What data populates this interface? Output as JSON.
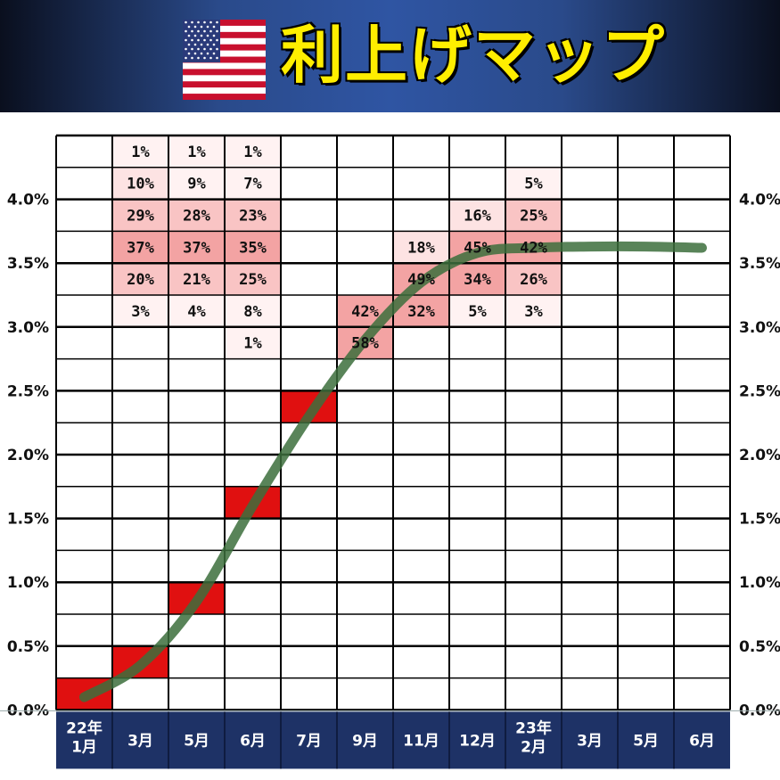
{
  "header": {
    "title": "利上げマップ",
    "flag_icon": "us-flag-icon"
  },
  "colors": {
    "banner": "#1f3a78",
    "title": "#ffee00",
    "hike_cell": "#e01010",
    "prob_shades": [
      "#fff2f2",
      "#fde3e3",
      "#f9c4c4",
      "#f3a3a3"
    ],
    "path_line": "#3c6f3c",
    "x_axis_bg": "#1e3266"
  },
  "chart_data": {
    "type": "table",
    "x": [
      "22年\n1月",
      "3月",
      "5月",
      "6月",
      "7月",
      "9月",
      "11月",
      "12月",
      "23年\n2月",
      "3月",
      "5月",
      "6月"
    ],
    "y_ticks": [
      "4.0%",
      "3.5%",
      "3.0%",
      "2.5%",
      "2.0%",
      "1.5%",
      "1.0%",
      "0.5%",
      "0.0%"
    ],
    "ylim": [
      0,
      4.5
    ],
    "rate_path": [
      {
        "month": "22年1月",
        "rate": 0.125
      },
      {
        "month": "3月",
        "rate": 0.375
      },
      {
        "month": "5月",
        "rate": 0.875
      },
      {
        "month": "6月",
        "rate": 1.625
      },
      {
        "month": "7月",
        "rate": 2.375
      },
      {
        "month": "9月",
        "rate": 2.875
      }
    ],
    "probabilities": [
      {
        "month": "9月",
        "cells": [
          {
            "rate": 3.125,
            "pct": "42%"
          },
          {
            "rate": 2.875,
            "pct": "58%"
          }
        ]
      },
      {
        "month": "11月",
        "cells": [
          {
            "rate": 3.625,
            "pct": "18%"
          },
          {
            "rate": 3.375,
            "pct": "49%"
          },
          {
            "rate": 3.125,
            "pct": "32%"
          }
        ]
      },
      {
        "month": "12月",
        "cells": [
          {
            "rate": 3.875,
            "pct": "16%"
          },
          {
            "rate": 3.625,
            "pct": "45%"
          },
          {
            "rate": 3.375,
            "pct": "34%"
          },
          {
            "rate": 3.125,
            "pct": "5%"
          }
        ]
      },
      {
        "month": "23年2月",
        "cells": [
          {
            "rate": 4.125,
            "pct": "5%"
          },
          {
            "rate": 3.875,
            "pct": "25%"
          },
          {
            "rate": 3.625,
            "pct": "42%"
          },
          {
            "rate": 3.375,
            "pct": "26%"
          },
          {
            "rate": 3.125,
            "pct": "3%"
          }
        ]
      },
      {
        "month": "3月",
        "cells": [
          {
            "rate": 4.375,
            "pct": "1%"
          },
          {
            "rate": 4.125,
            "pct": "10%"
          },
          {
            "rate": 3.875,
            "pct": "29%"
          },
          {
            "rate": 3.625,
            "pct": "37%"
          },
          {
            "rate": 3.375,
            "pct": "20%"
          },
          {
            "rate": 3.125,
            "pct": "3%"
          }
        ]
      },
      {
        "month": "5月",
        "cells": [
          {
            "rate": 4.375,
            "pct": "1%"
          },
          {
            "rate": 4.125,
            "pct": "9%"
          },
          {
            "rate": 3.875,
            "pct": "28%"
          },
          {
            "rate": 3.625,
            "pct": "37%"
          },
          {
            "rate": 3.375,
            "pct": "21%"
          },
          {
            "rate": 3.125,
            "pct": "4%"
          }
        ]
      },
      {
        "month": "6月",
        "cells": [
          {
            "rate": 4.375,
            "pct": "1%"
          },
          {
            "rate": 4.125,
            "pct": "7%"
          },
          {
            "rate": 3.875,
            "pct": "23%"
          },
          {
            "rate": 3.625,
            "pct": "35%"
          },
          {
            "rate": 3.375,
            "pct": "25%"
          },
          {
            "rate": 3.125,
            "pct": "8%"
          },
          {
            "rate": 2.875,
            "pct": "1%"
          }
        ]
      }
    ],
    "curve_points": [
      {
        "month_index": 0.5,
        "rate": 0.1
      },
      {
        "month_index": 1.5,
        "rate": 0.35
      },
      {
        "month_index": 2.5,
        "rate": 0.85
      },
      {
        "month_index": 3.5,
        "rate": 1.6
      },
      {
        "month_index": 4.5,
        "rate": 2.3
      },
      {
        "month_index": 5.5,
        "rate": 2.9
      },
      {
        "month_index": 6.5,
        "rate": 3.35
      },
      {
        "month_index": 7.5,
        "rate": 3.58
      },
      {
        "month_index": 8.5,
        "rate": 3.62
      },
      {
        "month_index": 9.5,
        "rate": 3.63
      },
      {
        "month_index": 10.5,
        "rate": 3.63
      },
      {
        "month_index": 11.5,
        "rate": 3.62
      }
    ]
  }
}
